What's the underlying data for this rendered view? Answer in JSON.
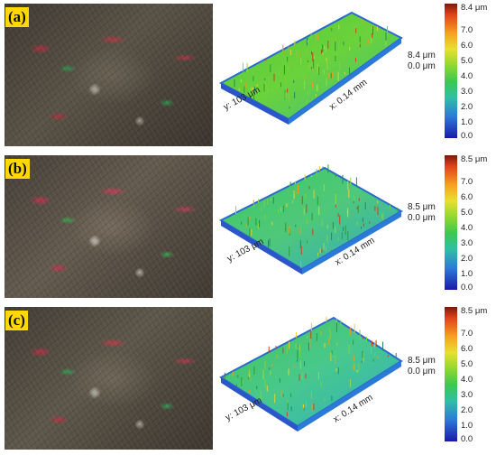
{
  "panels": [
    {
      "label": "(a)",
      "z_max": "8.4 μm",
      "z_min": "0.0 μm",
      "y_axis": "y: 103 μm",
      "x_axis": "x: 0.14 mm",
      "colorbar": {
        "top": "8.4 μm",
        "ticks": [
          "7.0",
          "6.0",
          "5.0",
          "4.0",
          "3.0",
          "2.0",
          "1.0",
          "0.0"
        ]
      }
    },
    {
      "label": "(b)",
      "z_max": "8.5 μm",
      "z_min": "0.0 μm",
      "y_axis": "y: 103 μm",
      "x_axis": "x: 0.14 mm",
      "colorbar": {
        "top": "8.5 μm",
        "ticks": [
          "7.0",
          "6.0",
          "5.0",
          "4.0",
          "3.0",
          "2.0",
          "1.0",
          "0.0"
        ]
      }
    },
    {
      "label": "(c)",
      "z_max": "8.5 μm",
      "z_min": "0.0 μm",
      "y_axis": "y: 103 μm",
      "x_axis": "x: 0.14 mm",
      "colorbar": {
        "top": "8.5 μm",
        "ticks": [
          "7.0",
          "6.0",
          "5.0",
          "4.0",
          "3.0",
          "2.0",
          "1.0",
          "0.0"
        ]
      }
    }
  ]
}
